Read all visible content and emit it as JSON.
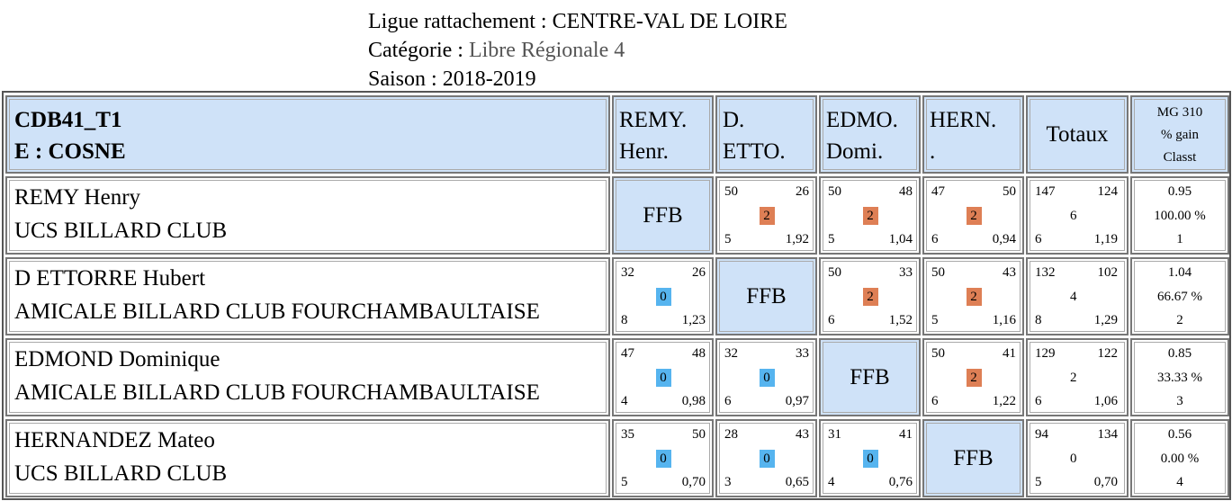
{
  "header": {
    "ligue_label": "Ligue rattachement : ",
    "ligue_value": "CENTRE-VAL DE LOIRE",
    "categorie_label": "Catégorie : ",
    "categorie_value": "Libre Régionale 4",
    "saison_label": "Saison : ",
    "saison_value": "2018-2019"
  },
  "table": {
    "corner": {
      "line1": "CDB41_T1",
      "line2": "E : COSNE"
    },
    "columns": [
      {
        "line1": "REMY.",
        "line2": "Henr."
      },
      {
        "line1": "D.",
        "line2": "ETTO."
      },
      {
        "line1": "EDMO.",
        "line2": "Domi."
      },
      {
        "line1": "HERN.",
        "line2": "."
      }
    ],
    "totals_header": "Totaux",
    "mg_header": {
      "line1": "MG 310",
      "line2": "% gain",
      "line3": "Classt"
    },
    "self_label": "FFB",
    "rows": [
      {
        "name": "REMY Henry",
        "club": "UCS BILLARD CLUB",
        "cells": [
          null,
          {
            "points": "50",
            "opp": "26",
            "result": "2",
            "innings": "5",
            "avg": "1,92"
          },
          {
            "points": "50",
            "opp": "48",
            "result": "2",
            "innings": "5",
            "avg": "1,04"
          },
          {
            "points": "47",
            "opp": "50",
            "result": "2",
            "innings": "6",
            "avg": "0,94"
          }
        ],
        "totals": {
          "points": "147",
          "opp": "124",
          "result": "6",
          "innings": "6",
          "avg": "1,19"
        },
        "mg": {
          "avg": "0.95",
          "pct": "100.00 %",
          "rank": "1"
        }
      },
      {
        "name": "D ETTORRE Hubert",
        "club": "AMICALE BILLARD CLUB FOURCHAMBAULTAISE",
        "cells": [
          {
            "points": "32",
            "opp": "26",
            "result": "0",
            "innings": "8",
            "avg": "1,23"
          },
          null,
          {
            "points": "50",
            "opp": "33",
            "result": "2",
            "innings": "6",
            "avg": "1,52"
          },
          {
            "points": "50",
            "opp": "43",
            "result": "2",
            "innings": "5",
            "avg": "1,16"
          }
        ],
        "totals": {
          "points": "132",
          "opp": "102",
          "result": "4",
          "innings": "8",
          "avg": "1,29"
        },
        "mg": {
          "avg": "1.04",
          "pct": "66.67 %",
          "rank": "2"
        }
      },
      {
        "name": "EDMOND Dominique",
        "club": "AMICALE BILLARD CLUB FOURCHAMBAULTAISE",
        "cells": [
          {
            "points": "47",
            "opp": "48",
            "result": "0",
            "innings": "4",
            "avg": "0,98"
          },
          {
            "points": "32",
            "opp": "33",
            "result": "0",
            "innings": "6",
            "avg": "0,97"
          },
          null,
          {
            "points": "50",
            "opp": "41",
            "result": "2",
            "innings": "6",
            "avg": "1,22"
          }
        ],
        "totals": {
          "points": "129",
          "opp": "122",
          "result": "2",
          "innings": "6",
          "avg": "1,06"
        },
        "mg": {
          "avg": "0.85",
          "pct": "33.33 %",
          "rank": "3"
        }
      },
      {
        "name": "HERNANDEZ Mateo",
        "club": "UCS BILLARD CLUB",
        "cells": [
          {
            "points": "35",
            "opp": "50",
            "result": "0",
            "innings": "5",
            "avg": "0,70"
          },
          {
            "points": "28",
            "opp": "43",
            "result": "0",
            "innings": "3",
            "avg": "0,65"
          },
          {
            "points": "31",
            "opp": "41",
            "result": "0",
            "innings": "4",
            "avg": "0,76"
          },
          null
        ],
        "totals": {
          "points": "94",
          "opp": "134",
          "result": "0",
          "innings": "5",
          "avg": "0,70"
        },
        "mg": {
          "avg": "0.56",
          "pct": "0.00 %",
          "rank": "4"
        }
      }
    ]
  },
  "colors": {
    "header_bg": "#cfe2f8",
    "win_badge": "#de7f55",
    "loss_badge": "#56b4ef"
  }
}
